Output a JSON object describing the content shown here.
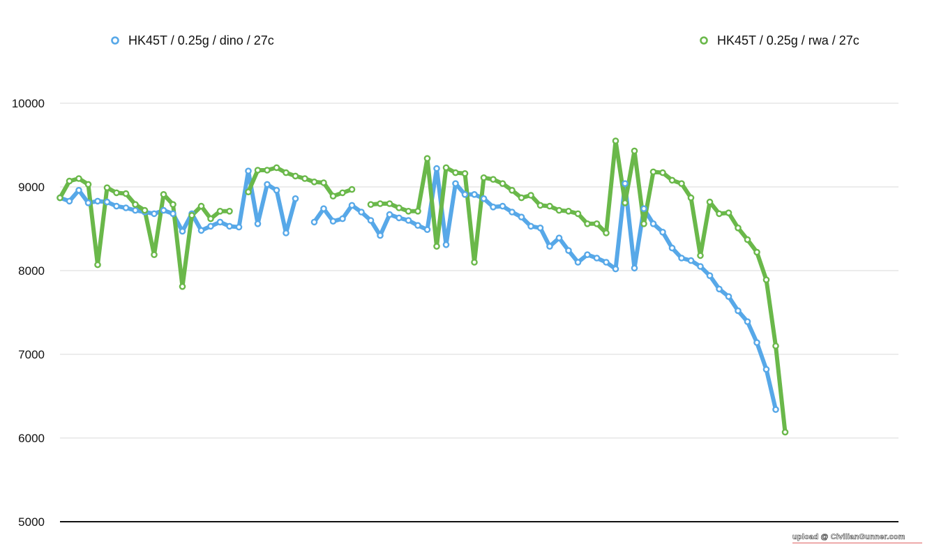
{
  "chart_data": {
    "type": "line",
    "title": "",
    "xlabel": "",
    "ylabel": "",
    "ylim": [
      5000,
      10000
    ],
    "yticks": [
      5000,
      6000,
      7000,
      8000,
      9000,
      10000
    ],
    "ytick_labels": [
      "5000",
      "6000",
      "7000",
      "8000",
      "9000",
      "10000"
    ],
    "grid": true,
    "legend_position": "top",
    "x_count": 78,
    "series": [
      {
        "name": "HK45T / 0.25g / dino / 27c",
        "color": "#57a8e8",
        "values": [
          8870,
          8830,
          8960,
          8810,
          8830,
          8820,
          8770,
          8750,
          8720,
          8700,
          8680,
          8720,
          8680,
          8470,
          8680,
          8480,
          8530,
          8580,
          8530,
          8520,
          9190,
          8560,
          9030,
          8960,
          8450,
          8860,
          null,
          8580,
          8740,
          8590,
          8620,
          8780,
          8700,
          8600,
          8420,
          8670,
          8630,
          8600,
          8540,
          8490,
          9220,
          8310,
          9040,
          8910,
          8910,
          8860,
          8760,
          8770,
          8700,
          8640,
          8530,
          8510,
          8290,
          8390,
          8240,
          8100,
          8190,
          8150,
          8100,
          8020,
          9040,
          8030,
          8740,
          8560,
          8460,
          8270,
          8150,
          8120,
          8050,
          7940,
          7780,
          7690,
          7520,
          7390,
          7140,
          6820,
          6340,
          null
        ]
      },
      {
        "name": "HK45T / 0.25g / rwa / 27c",
        "color": "#6ab84a",
        "values": [
          8870,
          9070,
          9100,
          9030,
          8070,
          8990,
          8930,
          8920,
          8790,
          8720,
          8190,
          8910,
          8790,
          7810,
          8660,
          8770,
          8620,
          8710,
          8710,
          null,
          8940,
          9200,
          9200,
          9230,
          9170,
          9130,
          9100,
          9060,
          9050,
          8890,
          8930,
          8970,
          null,
          8790,
          8800,
          8800,
          8750,
          8710,
          8710,
          9340,
          8290,
          9230,
          9170,
          9160,
          8100,
          9110,
          9090,
          9040,
          8960,
          8870,
          8900,
          8780,
          8770,
          8720,
          8710,
          8680,
          8560,
          8560,
          8450,
          9550,
          8810,
          9430,
          8560,
          9180,
          9170,
          9080,
          9040,
          8870,
          8180,
          8820,
          8680,
          8690,
          8510,
          8370,
          8220,
          7890,
          7100,
          6070
        ]
      }
    ]
  },
  "watermark": "upload @ CivilianGunner.com"
}
